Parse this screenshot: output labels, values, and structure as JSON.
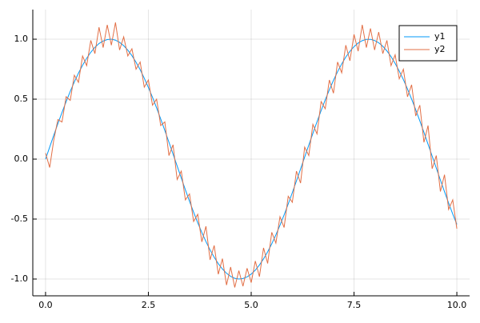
{
  "chart_data": {
    "type": "line",
    "x": [
      0,
      0.1,
      0.2,
      0.3,
      0.4,
      0.5,
      0.6,
      0.7,
      0.8,
      0.9,
      1,
      1.1,
      1.2,
      1.3,
      1.4,
      1.5,
      1.6,
      1.7,
      1.8,
      1.9,
      2,
      2.1,
      2.2,
      2.3,
      2.4,
      2.5,
      2.6,
      2.7,
      2.8,
      2.9,
      3,
      3.1,
      3.2,
      3.3,
      3.4,
      3.5,
      3.6,
      3.7,
      3.8,
      3.9,
      4,
      4.1,
      4.2,
      4.3,
      4.4,
      4.5,
      4.6,
      4.7,
      4.8,
      4.9,
      5,
      5.1,
      5.2,
      5.3,
      5.4,
      5.5,
      5.6,
      5.7,
      5.8,
      5.9,
      6,
      6.1,
      6.2,
      6.3,
      6.4,
      6.5,
      6.6,
      6.7,
      6.8,
      6.9,
      7,
      7.1,
      7.2,
      7.3,
      7.4,
      7.5,
      7.6,
      7.7,
      7.8,
      7.9,
      8,
      8.1,
      8.2,
      8.3,
      8.4,
      8.5,
      8.6,
      8.7,
      8.8,
      8.9,
      9,
      9.1,
      9.2,
      9.3,
      9.4,
      9.5,
      9.6,
      9.7,
      9.8,
      9.9,
      10
    ],
    "series": [
      {
        "name": "y1",
        "color": "#009af9",
        "values": [
          0,
          0.1,
          0.199,
          0.296,
          0.389,
          0.479,
          0.565,
          0.644,
          0.717,
          0.783,
          0.841,
          0.891,
          0.932,
          0.964,
          0.985,
          0.997,
          1,
          0.992,
          0.974,
          0.946,
          0.909,
          0.863,
          0.808,
          0.746,
          0.675,
          0.598,
          0.516,
          0.427,
          0.335,
          0.239,
          0.141,
          0.042,
          -0.058,
          -0.158,
          -0.256,
          -0.351,
          -0.443,
          -0.53,
          -0.612,
          -0.688,
          -0.757,
          -0.818,
          -0.872,
          -0.916,
          -0.952,
          -0.978,
          -0.994,
          -1,
          -0.996,
          -0.982,
          -0.959,
          -0.926,
          -0.883,
          -0.832,
          -0.773,
          -0.706,
          -0.631,
          -0.551,
          -0.465,
          -0.374,
          -0.279,
          -0.182,
          -0.083,
          0.017,
          0.117,
          0.215,
          0.312,
          0.405,
          0.494,
          0.578,
          0.657,
          0.729,
          0.794,
          0.851,
          0.899,
          0.938,
          0.968,
          0.988,
          0.999,
          0.999,
          0.989,
          0.97,
          0.941,
          0.902,
          0.855,
          0.798,
          0.734,
          0.663,
          0.585,
          0.501,
          0.412,
          0.319,
          0.223,
          0.124,
          0.025,
          -0.075,
          -0.174,
          -0.272,
          -0.366,
          -0.458,
          -0.544
        ]
      },
      {
        "name": "y2",
        "color": "#e26f46",
        "values": [
          0.05,
          -0.07,
          0.16,
          0.33,
          0.31,
          0.52,
          0.49,
          0.7,
          0.64,
          0.86,
          0.78,
          0.99,
          0.88,
          1.1,
          0.93,
          1.12,
          0.95,
          1.14,
          0.91,
          1.02,
          0.86,
          0.92,
          0.75,
          0.81,
          0.6,
          0.66,
          0.45,
          0.5,
          0.28,
          0.31,
          0.03,
          0.12,
          -0.17,
          -0.1,
          -0.34,
          -0.29,
          -0.52,
          -0.46,
          -0.69,
          -0.56,
          -0.84,
          -0.72,
          -0.96,
          -0.83,
          -1.05,
          -0.9,
          -1.07,
          -0.93,
          -1.06,
          -0.91,
          -1.03,
          -0.85,
          -0.98,
          -0.74,
          -0.87,
          -0.61,
          -0.7,
          -0.48,
          -0.57,
          -0.31,
          -0.36,
          -0.1,
          -0.2,
          0.1,
          0.03,
          0.29,
          0.21,
          0.48,
          0.42,
          0.66,
          0.55,
          0.81,
          0.72,
          0.95,
          0.82,
          1.04,
          0.9,
          1.12,
          0.93,
          1.09,
          0.91,
          1.06,
          0.88,
          0.99,
          0.78,
          0.87,
          0.67,
          0.75,
          0.52,
          0.62,
          0.36,
          0.45,
          0.14,
          0.28,
          -0.08,
          0.03,
          -0.27,
          -0.13,
          -0.42,
          -0.34,
          -0.58
        ]
      }
    ],
    "xlim": [
      -0.31,
      10.31
    ],
    "ylim": [
      -1.14,
      1.247
    ],
    "xticks": [
      {
        "value": 0,
        "label": "0.0"
      },
      {
        "value": 2.5,
        "label": "2.5"
      },
      {
        "value": 5,
        "label": "5.0"
      },
      {
        "value": 7.5,
        "label": "7.5"
      },
      {
        "value": 10,
        "label": "10.0"
      }
    ],
    "yticks": [
      {
        "value": -1,
        "label": "-1.0"
      },
      {
        "value": -0.5,
        "label": "-0.5"
      },
      {
        "value": 0,
        "label": "0.0"
      },
      {
        "value": 0.5,
        "label": "0.5"
      },
      {
        "value": 1,
        "label": "1.0"
      }
    ],
    "grid": true,
    "legend": "top-right"
  }
}
